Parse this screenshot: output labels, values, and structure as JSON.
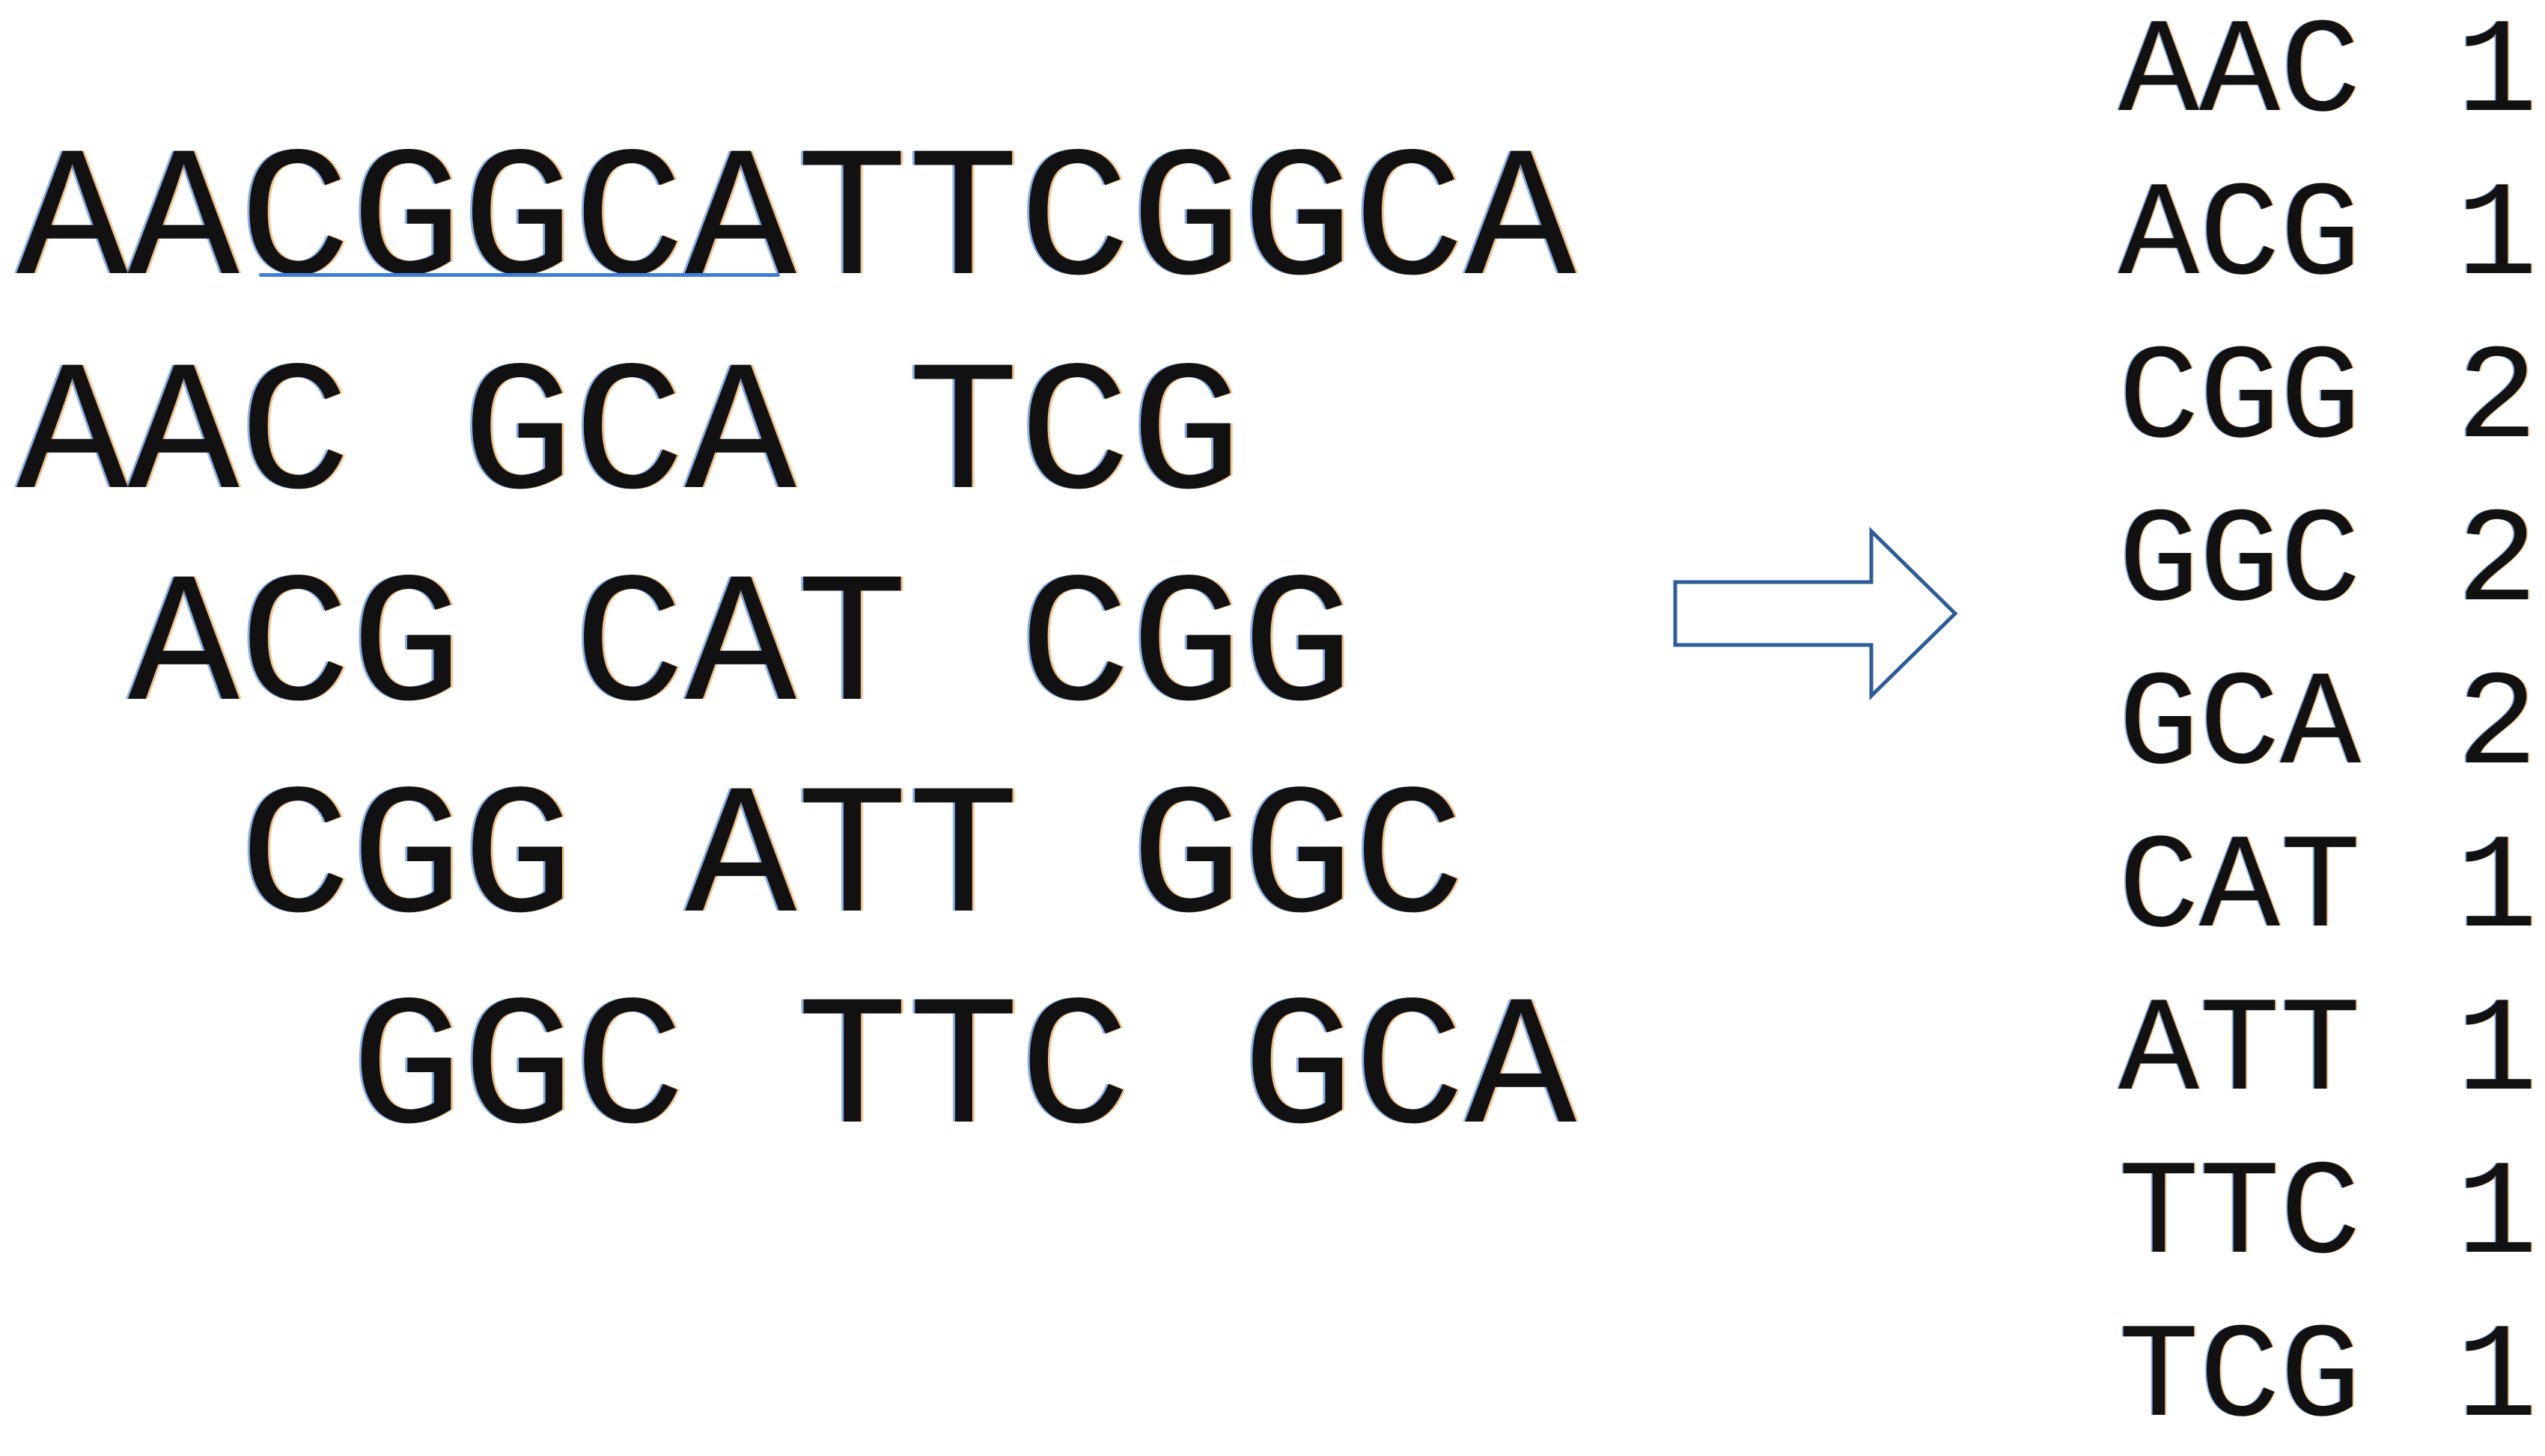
{
  "sequence": "AACGGCATTCGGCA",
  "kmer_rows": [
    [
      "AAC",
      "GCA",
      "TCG"
    ],
    [
      "ACG",
      "CAT",
      "CGG"
    ],
    [
      "CGG",
      "ATT",
      "GGC"
    ],
    [
      "GGC",
      "TTC",
      "GCA"
    ]
  ],
  "counts": [
    {
      "kmer": "AAC",
      "count": "1"
    },
    {
      "kmer": "ACG",
      "count": "1"
    },
    {
      "kmer": "CGG",
      "count": "2"
    },
    {
      "kmer": "GGC",
      "count": "2"
    },
    {
      "kmer": "GCA",
      "count": "2"
    },
    {
      "kmer": "CAT",
      "count": "1"
    },
    {
      "kmer": "ATT",
      "count": "1"
    },
    {
      "kmer": "TTC",
      "count": "1"
    },
    {
      "kmer": "TCG",
      "count": "1"
    }
  ],
  "colors": {
    "arrow": "#2d5c98",
    "underline": "#3e7fd6",
    "text": "#111111"
  },
  "icons": {
    "arrow": "right-arrow-icon"
  }
}
